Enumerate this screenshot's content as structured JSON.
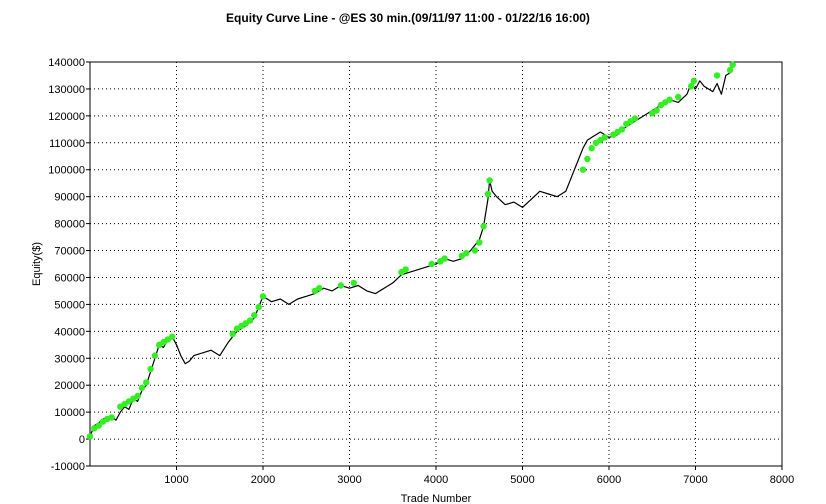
{
  "chart_data": {
    "type": "line",
    "title": "Equity Curve Line - @ES 30 min.(09/11/97 11:00 - 01/22/16 16:00)",
    "xlabel": "Trade Number",
    "ylabel": "Equity($)",
    "xlim": [
      0,
      8000
    ],
    "ylim": [
      -10000,
      140000
    ],
    "x_ticks": [
      1000,
      2000,
      3000,
      4000,
      5000,
      6000,
      7000,
      8000
    ],
    "y_ticks": [
      -10000,
      0,
      10000,
      20000,
      30000,
      40000,
      50000,
      60000,
      70000,
      80000,
      90000,
      100000,
      110000,
      120000,
      130000,
      140000
    ],
    "x_tick_labels": [
      "1000",
      "2000",
      "3000",
      "4000",
      "5000",
      "6000",
      "7000",
      "8000"
    ],
    "y_tick_labels": [
      "-10000",
      "0",
      "10000",
      "20000",
      "30000",
      "40000",
      "50000",
      "60000",
      "70000",
      "80000",
      "90000",
      "100000",
      "110000",
      "120000",
      "130000",
      "140000"
    ],
    "grid": true,
    "colors": {
      "line": "#000000",
      "new_high": "#33ee22",
      "grid": "#000000"
    },
    "series": [
      {
        "x": [
          0,
          50,
          100,
          150,
          200,
          250,
          300,
          350,
          400,
          450,
          500,
          550,
          600,
          650,
          700,
          750,
          800,
          850,
          900,
          950,
          1000,
          1050,
          1100,
          1150,
          1200,
          1300,
          1400,
          1500,
          1600,
          1700,
          1800,
          1900,
          1950,
          2000,
          2050,
          2100,
          2200,
          2300,
          2400,
          2500,
          2600,
          2700,
          2800,
          2900,
          3000,
          3100,
          3200,
          3300,
          3400,
          3500,
          3600,
          3700,
          3800,
          3900,
          4000,
          4100,
          4200,
          4300,
          4400,
          4500,
          4550,
          4600,
          4620,
          4650,
          4700,
          4800,
          4900,
          5000,
          5100,
          5200,
          5300,
          5400,
          5500,
          5600,
          5650,
          5700,
          5750,
          5800,
          5900,
          6000,
          6100,
          6200,
          6300,
          6400,
          6500,
          6600,
          6700,
          6800,
          6900,
          6950,
          7000,
          7050,
          7100,
          7200,
          7250,
          7300,
          7350,
          7400,
          7430
        ],
        "y": [
          1000,
          5000,
          6000,
          7500,
          8000,
          8500,
          7000,
          10000,
          12000,
          11000,
          15000,
          14000,
          18000,
          20000,
          25000,
          30000,
          35000,
          34000,
          37000,
          38000,
          35000,
          31000,
          28000,
          29000,
          31000,
          32000,
          33000,
          31000,
          36000,
          40000,
          42000,
          45000,
          49000,
          53000,
          52000,
          51000,
          52000,
          50000,
          52000,
          53000,
          54000,
          56000,
          55000,
          57000,
          56000,
          57000,
          55000,
          54000,
          56000,
          58000,
          61000,
          62000,
          63000,
          64000,
          65000,
          67000,
          66000,
          67000,
          70000,
          74000,
          79000,
          89000,
          96000,
          92000,
          90000,
          87000,
          88000,
          86000,
          89000,
          92000,
          91000,
          90000,
          92000,
          100000,
          104000,
          108000,
          111000,
          112000,
          114000,
          112000,
          113000,
          116000,
          118000,
          120000,
          122000,
          124000,
          126000,
          125000,
          128000,
          132000,
          130000,
          133000,
          131000,
          129000,
          132000,
          128000,
          135000,
          136000,
          139000
        ]
      }
    ],
    "new_highs": {
      "x": [
        0,
        50,
        100,
        150,
        200,
        250,
        350,
        400,
        450,
        500,
        550,
        600,
        650,
        700,
        750,
        800,
        850,
        900,
        950,
        1650,
        1700,
        1750,
        1800,
        1850,
        1900,
        1950,
        2000,
        2600,
        2650,
        2900,
        3050,
        3600,
        3650,
        3950,
        4050,
        4100,
        4300,
        4350,
        4450,
        4500,
        4550,
        4600,
        4620,
        5700,
        5750,
        5800,
        5850,
        5900,
        5950,
        6050,
        6100,
        6150,
        6200,
        6250,
        6300,
        6500,
        6550,
        6600,
        6650,
        6700,
        6800,
        6950,
        6980,
        7250,
        7400,
        7430
      ],
      "y": [
        1000,
        4000,
        5000,
        6500,
        7500,
        8000,
        12000,
        13000,
        14000,
        15000,
        16000,
        19000,
        21000,
        26000,
        31000,
        35000,
        36000,
        37000,
        38000,
        39000,
        41000,
        42000,
        43000,
        44000,
        46000,
        49000,
        53000,
        55000,
        56000,
        57000,
        58000,
        62000,
        63000,
        65000,
        66000,
        67000,
        68000,
        69000,
        70000,
        73000,
        79000,
        91000,
        96000,
        100000,
        104000,
        108000,
        110000,
        111000,
        112000,
        113000,
        114000,
        115000,
        117000,
        118000,
        119000,
        121000,
        122000,
        124000,
        125000,
        126000,
        127000,
        131000,
        133000,
        135000,
        137000,
        139000
      ]
    }
  }
}
